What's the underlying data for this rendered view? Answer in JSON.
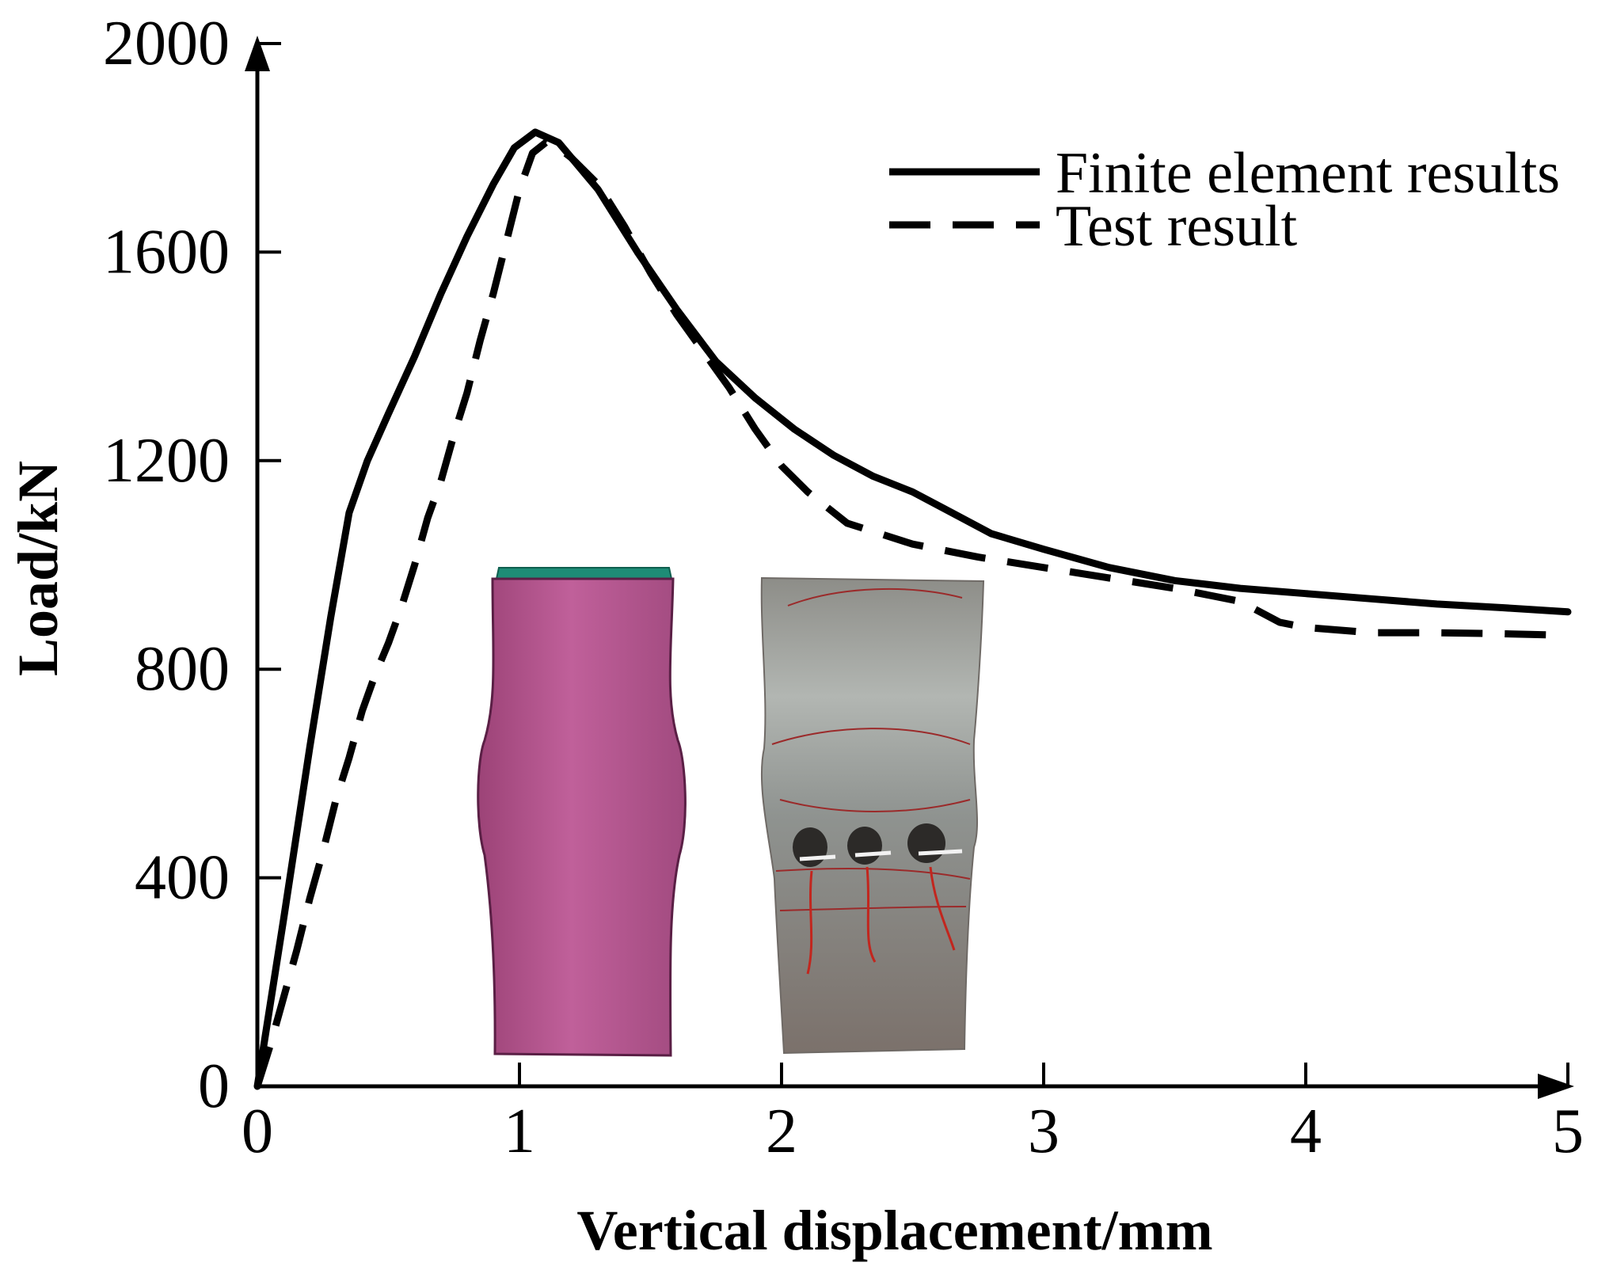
{
  "chart_data": {
    "type": "line",
    "xlabel": "Vertical displacement/mm",
    "ylabel": "Load/kN",
    "xlim": [
      0,
      5
    ],
    "ylim": [
      0,
      2000
    ],
    "xticks": [
      "0",
      "1",
      "2",
      "3",
      "4",
      "5"
    ],
    "yticks": [
      "0",
      "400",
      "800",
      "1200",
      "1600",
      "2000"
    ],
    "grid": false,
    "legend_position": "top-right",
    "series": [
      {
        "name": "Finite element results",
        "style": "solid",
        "color": "#000000",
        "x": [
          0,
          0.1,
          0.2,
          0.28,
          0.35,
          0.42,
          0.5,
          0.6,
          0.7,
          0.8,
          0.9,
          0.98,
          1.06,
          1.15,
          1.3,
          1.45,
          1.6,
          1.75,
          1.9,
          2.05,
          2.2,
          2.35,
          2.5,
          2.65,
          2.8,
          3.0,
          3.25,
          3.5,
          3.75,
          4.0,
          4.25,
          4.5,
          4.75,
          5.0
        ],
        "y": [
          0,
          320,
          650,
          900,
          1100,
          1200,
          1290,
          1400,
          1520,
          1630,
          1730,
          1800,
          1830,
          1810,
          1720,
          1600,
          1490,
          1390,
          1320,
          1260,
          1210,
          1170,
          1140,
          1100,
          1060,
          1030,
          995,
          970,
          955,
          945,
          935,
          925,
          918,
          910
        ]
      },
      {
        "name": "Test result",
        "style": "dashed",
        "color": "#000000",
        "x": [
          0,
          0.05,
          0.1,
          0.15,
          0.2,
          0.25,
          0.3,
          0.35,
          0.4,
          0.45,
          0.5,
          0.55,
          0.6,
          0.65,
          0.7,
          0.75,
          0.8,
          0.85,
          0.9,
          0.95,
          1.0,
          1.05,
          1.1,
          1.15,
          1.2,
          1.3,
          1.4,
          1.5,
          1.6,
          1.7,
          1.8,
          1.9,
          2.0,
          2.1,
          2.25,
          2.5,
          2.75,
          3.0,
          3.25,
          3.5,
          3.75,
          3.9,
          4.0,
          4.25,
          4.5,
          4.75,
          5.0
        ],
        "y": [
          0,
          80,
          170,
          260,
          360,
          450,
          550,
          630,
          720,
          790,
          850,
          920,
          1000,
          1090,
          1160,
          1250,
          1330,
          1430,
          1520,
          1620,
          1720,
          1790,
          1810,
          1800,
          1780,
          1730,
          1650,
          1560,
          1480,
          1410,
          1340,
          1260,
          1190,
          1140,
          1080,
          1040,
          1015,
          995,
          975,
          955,
          930,
          890,
          880,
          870,
          870,
          868,
          865
        ]
      }
    ]
  }
}
